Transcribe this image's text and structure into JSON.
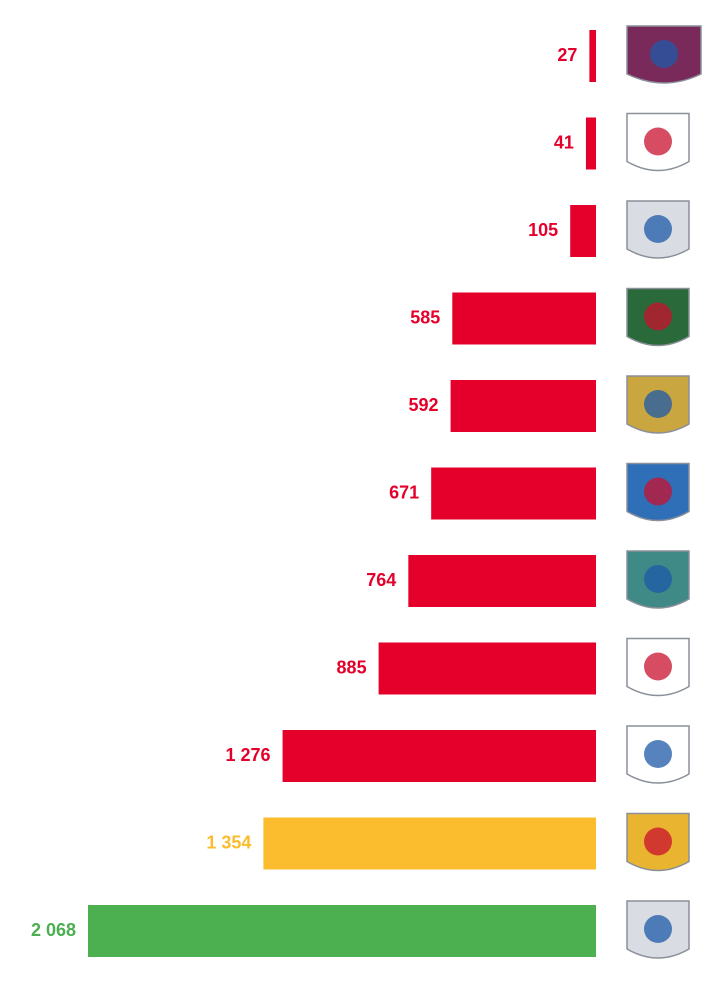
{
  "chart_data": {
    "type": "bar",
    "orientation": "horizontal",
    "values": [
      27,
      41,
      105,
      585,
      592,
      671,
      764,
      885,
      1276,
      1354,
      2068
    ],
    "value_labels": [
      "27",
      "41",
      "105",
      "585",
      "592",
      "671",
      "764",
      "885",
      "1 276",
      "1 354",
      "2 068"
    ],
    "colors": [
      "#e4002b",
      "#e4002b",
      "#e4002b",
      "#e4002b",
      "#e4002b",
      "#e4002b",
      "#e4002b",
      "#e4002b",
      "#e4002b",
      "#fbbd2e",
      "#4caf50"
    ]
  }
}
